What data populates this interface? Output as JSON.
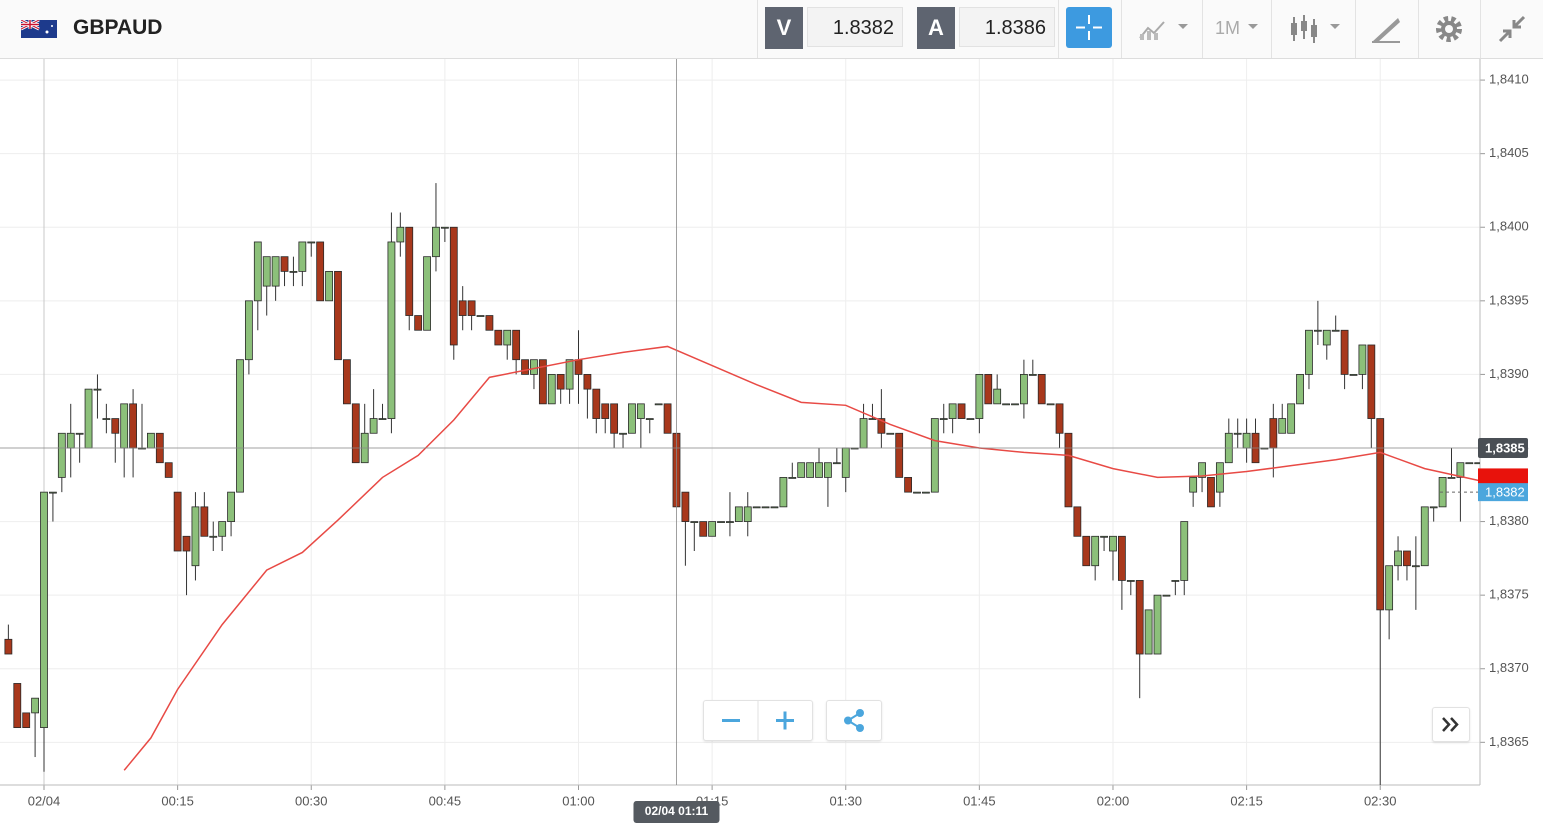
{
  "header": {
    "symbol": "GBPAUD",
    "bid_label": "V",
    "bid": "1.8382",
    "ask_label": "A",
    "ask": "1.8386",
    "timeframe": "1M"
  },
  "chart_data": {
    "type": "candlestick",
    "up_color": "#8cc07a",
    "down_color": "#a8381c",
    "x": [
      -4,
      -3,
      -2,
      -1,
      0,
      1,
      2,
      3,
      4,
      5,
      6,
      7,
      8,
      9,
      10,
      11,
      12,
      13,
      14,
      15,
      16,
      17,
      18,
      19,
      20,
      21,
      22,
      23,
      24,
      25,
      26,
      27,
      28,
      29,
      30,
      31,
      32,
      33,
      34,
      35,
      36,
      37,
      38,
      39,
      40,
      41,
      42,
      43,
      44,
      45,
      46,
      47,
      48,
      49,
      50,
      51,
      52,
      53,
      54,
      55,
      56,
      57,
      58,
      59,
      60,
      61,
      62,
      63,
      64,
      65,
      66,
      67,
      68,
      69,
      70,
      71,
      72,
      73,
      74,
      75,
      76,
      77,
      78,
      79,
      80,
      81,
      82,
      83,
      84,
      85,
      86,
      87,
      88,
      89,
      90,
      91,
      92,
      93,
      94,
      95,
      96,
      97,
      98,
      99,
      100,
      101,
      102,
      103,
      104,
      105,
      106,
      107,
      108,
      109,
      110,
      111,
      112,
      113,
      114,
      115,
      116,
      117,
      118,
      119,
      120,
      121,
      122,
      123,
      124,
      125,
      126,
      127,
      128,
      129,
      130,
      131,
      132,
      133,
      134,
      135,
      136,
      137,
      138,
      139,
      140,
      141,
      142,
      143,
      144,
      145,
      146,
      147,
      148,
      149,
      150,
      151,
      152,
      153,
      154,
      155,
      156,
      157,
      158,
      159,
      160,
      161
    ],
    "open": [
      1.8372,
      1.8369,
      1.8367,
      1.8367,
      1.8366,
      1.8382,
      1.8383,
      1.8385,
      1.8386,
      1.8385,
      1.8389,
      1.8387,
      1.8387,
      1.8385,
      1.8388,
      1.8385,
      1.8385,
      1.8386,
      1.8384,
      1.8382,
      1.8379,
      1.8377,
      1.8381,
      1.8379,
      1.8379,
      1.838,
      1.8382,
      1.8391,
      1.8395,
      1.8396,
      1.8396,
      1.8398,
      1.8397,
      1.8397,
      1.8399,
      1.8399,
      1.8395,
      1.8397,
      1.8391,
      1.8388,
      1.8384,
      1.8386,
      1.8387,
      1.8387,
      1.8399,
      1.84,
      1.8394,
      1.8393,
      1.8398,
      1.84,
      1.84,
      1.8395,
      1.8395,
      1.8394,
      1.8394,
      1.8393,
      1.8392,
      1.8393,
      1.8391,
      1.839,
      1.8391,
      1.8388,
      1.839,
      1.8389,
      1.8391,
      1.839,
      1.8389,
      1.8388,
      1.8388,
      1.8386,
      1.8386,
      1.8387,
      1.8387,
      1.8388,
      1.8388,
      1.8386,
      1.8382,
      1.838,
      1.838,
      1.8379,
      1.838,
      1.838,
      1.838,
      1.838,
      1.8381,
      1.8381,
      1.8381,
      1.8381,
      1.8383,
      1.8383,
      1.8383,
      1.8383,
      1.8383,
      1.8384,
      1.8383,
      1.8385,
      1.8385,
      1.8387,
      1.8387,
      1.8386,
      1.8386,
      1.8383,
      1.8382,
      1.8382,
      1.8382,
      1.8387,
      1.8387,
      1.8388,
      1.8387,
      1.8387,
      1.839,
      1.8388,
      1.8388,
      1.8388,
      1.8388,
      1.839,
      1.839,
      1.8388,
      1.8388,
      1.8386,
      1.8381,
      1.8379,
      1.8377,
      1.8379,
      1.8378,
      1.8379,
      1.8376,
      1.8376,
      1.8371,
      1.8371,
      1.8375,
      1.8376,
      1.8376,
      1.8382,
      1.8383,
      1.8383,
      1.8382,
      1.8384,
      1.8386,
      1.8385,
      1.8386,
      1.8385,
      1.8387,
      1.8386,
      1.8386,
      1.8388,
      1.839,
      1.8393,
      1.8392,
      1.8393,
      1.8393,
      1.839,
      1.839,
      1.8392,
      1.8387,
      1.8374,
      1.8377,
      1.8378,
      1.8377,
      1.8377,
      1.8381,
      1.8381,
      1.8383,
      1.8383,
      1.8384,
      1.8384
    ],
    "high": [
      1.8373,
      1.8369,
      1.8367,
      1.8368,
      1.8382,
      1.8382,
      1.8386,
      1.8388,
      1.8386,
      1.8389,
      1.839,
      1.8388,
      1.8387,
      1.8388,
      1.8389,
      1.8388,
      1.8386,
      1.8386,
      1.8384,
      1.8382,
      1.8379,
      1.8382,
      1.8382,
      1.838,
      1.838,
      1.8382,
      1.8391,
      1.8395,
      1.8399,
      1.8398,
      1.8398,
      1.8398,
      1.8398,
      1.8399,
      1.8399,
      1.8399,
      1.8397,
      1.8397,
      1.8391,
      1.8388,
      1.8388,
      1.8389,
      1.8388,
      1.8401,
      1.8401,
      1.84,
      1.8394,
      1.8398,
      1.8403,
      1.84,
      1.84,
      1.8396,
      1.8395,
      1.8394,
      1.8394,
      1.8393,
      1.8393,
      1.8393,
      1.8391,
      1.8391,
      1.8391,
      1.839,
      1.839,
      1.8391,
      1.8393,
      1.839,
      1.8389,
      1.8388,
      1.8388,
      1.8386,
      1.8388,
      1.8388,
      1.8387,
      1.8388,
      1.8388,
      1.8386,
      1.8382,
      1.838,
      1.838,
      1.838,
      1.838,
      1.8382,
      1.8381,
      1.8382,
      1.8381,
      1.8381,
      1.8381,
      1.8383,
      1.8384,
      1.8384,
      1.8384,
      1.8385,
      1.8384,
      1.8385,
      1.8385,
      1.8385,
      1.8388,
      1.8388,
      1.8389,
      1.8386,
      1.8386,
      1.8383,
      1.8382,
      1.8382,
      1.8387,
      1.8388,
      1.8388,
      1.8388,
      1.8387,
      1.839,
      1.839,
      1.839,
      1.8388,
      1.8388,
      1.8391,
      1.8391,
      1.839,
      1.8388,
      1.8388,
      1.8386,
      1.8381,
      1.8379,
      1.8379,
      1.8379,
      1.8379,
      1.8379,
      1.8376,
      1.8376,
      1.8374,
      1.8375,
      1.8375,
      1.8376,
      1.838,
      1.8383,
      1.8384,
      1.8383,
      1.8384,
      1.8387,
      1.8387,
      1.8387,
      1.8387,
      1.8385,
      1.8388,
      1.8388,
      1.8388,
      1.839,
      1.8393,
      1.8395,
      1.8393,
      1.8394,
      1.8393,
      1.839,
      1.8392,
      1.8392,
      1.8387,
      1.8377,
      1.8379,
      1.8378,
      1.8379,
      1.8381,
      1.8381,
      1.8383,
      1.8385,
      1.8384,
      1.8384,
      1.8384
    ],
    "low": [
      1.8371,
      1.8366,
      1.8366,
      1.8364,
      1.8363,
      1.838,
      1.8382,
      1.8383,
      1.8384,
      1.8385,
      1.8387,
      1.8386,
      1.8384,
      1.8383,
      1.8383,
      1.8385,
      1.8385,
      1.8384,
      1.8383,
      1.8378,
      1.8375,
      1.8376,
      1.8379,
      1.8378,
      1.8378,
      1.8379,
      1.8382,
      1.839,
      1.8393,
      1.8394,
      1.8395,
      1.8396,
      1.8396,
      1.8396,
      1.8398,
      1.8395,
      1.8395,
      1.8391,
      1.8388,
      1.8384,
      1.8384,
      1.8386,
      1.8387,
      1.8386,
      1.8398,
      1.8393,
      1.8393,
      1.8393,
      1.8397,
      1.8399,
      1.8391,
      1.8393,
      1.8393,
      1.8394,
      1.8393,
      1.8392,
      1.8391,
      1.839,
      1.839,
      1.8389,
      1.8388,
      1.8388,
      1.8388,
      1.8388,
      1.8388,
      1.8387,
      1.8386,
      1.8386,
      1.8385,
      1.8385,
      1.8386,
      1.8385,
      1.8386,
      1.8388,
      1.8386,
      1.8381,
      1.8377,
      1.8378,
      1.8379,
      1.8379,
      1.838,
      1.8379,
      1.838,
      1.8379,
      1.8381,
      1.8381,
      1.8381,
      1.8381,
      1.8383,
      1.8383,
      1.8383,
      1.8383,
      1.8381,
      1.8384,
      1.8382,
      1.8385,
      1.8385,
      1.8387,
      1.8385,
      1.8386,
      1.8383,
      1.8382,
      1.8382,
      1.8382,
      1.8382,
      1.8386,
      1.8386,
      1.8387,
      1.8387,
      1.8386,
      1.8388,
      1.8388,
      1.8388,
      1.8388,
      1.8387,
      1.839,
      1.8388,
      1.8388,
      1.8385,
      1.8381,
      1.8379,
      1.8377,
      1.8376,
      1.8378,
      1.8376,
      1.8374,
      1.8375,
      1.8368,
      1.8371,
      1.8371,
      1.8375,
      1.8375,
      1.8375,
      1.8381,
      1.8382,
      1.8381,
      1.8381,
      1.8384,
      1.8385,
      1.8384,
      1.8384,
      1.8385,
      1.8383,
      1.8386,
      1.8386,
      1.8388,
      1.8389,
      1.8392,
      1.8391,
      1.8393,
      1.8389,
      1.839,
      1.8389,
      1.8385,
      1.8362,
      1.8372,
      1.8376,
      1.8376,
      1.8374,
      1.8377,
      1.838,
      1.8381,
      1.8383,
      1.838,
      1.8384,
      1.8384
    ],
    "close": [
      1.8371,
      1.8366,
      1.8366,
      1.8368,
      1.8382,
      1.8382,
      1.8386,
      1.8386,
      1.8386,
      1.8389,
      1.8389,
      1.8387,
      1.8386,
      1.8388,
      1.8385,
      1.8385,
      1.8386,
      1.8384,
      1.8383,
      1.8378,
      1.8378,
      1.8381,
      1.8379,
      1.8379,
      1.838,
      1.8382,
      1.8391,
      1.8395,
      1.8399,
      1.8398,
      1.8398,
      1.8397,
      1.8397,
      1.8399,
      1.8399,
      1.8395,
      1.8397,
      1.8391,
      1.8388,
      1.8384,
      1.8386,
      1.8387,
      1.8387,
      1.8399,
      1.84,
      1.8394,
      1.8393,
      1.8398,
      1.84,
      1.84,
      1.8392,
      1.8394,
      1.8394,
      1.8394,
      1.8393,
      1.8392,
      1.8393,
      1.8391,
      1.839,
      1.8391,
      1.8388,
      1.839,
      1.8389,
      1.8391,
      1.839,
      1.8389,
      1.8387,
      1.8387,
      1.8386,
      1.8386,
      1.8388,
      1.8388,
      1.8387,
      1.8388,
      1.8386,
      1.8381,
      1.838,
      1.838,
      1.8379,
      1.838,
      1.838,
      1.838,
      1.8381,
      1.8381,
      1.8381,
      1.8381,
      1.8381,
      1.8383,
      1.8383,
      1.8384,
      1.8384,
      1.8384,
      1.8384,
      1.8384,
      1.8385,
      1.8385,
      1.8387,
      1.8387,
      1.8386,
      1.8386,
      1.8383,
      1.8382,
      1.8382,
      1.8382,
      1.8387,
      1.8387,
      1.8388,
      1.8387,
      1.8387,
      1.839,
      1.8388,
      1.8389,
      1.8388,
      1.8388,
      1.839,
      1.839,
      1.8388,
      1.8388,
      1.8386,
      1.8381,
      1.8379,
      1.8377,
      1.8379,
      1.8379,
      1.8379,
      1.8376,
      1.8376,
      1.8371,
      1.8374,
      1.8375,
      1.8375,
      1.8376,
      1.838,
      1.8383,
      1.8384,
      1.8381,
      1.8384,
      1.8386,
      1.8386,
      1.8386,
      1.8384,
      1.8385,
      1.8385,
      1.8387,
      1.8388,
      1.839,
      1.8393,
      1.8393,
      1.8393,
      1.8393,
      1.839,
      1.839,
      1.8392,
      1.8387,
      1.8374,
      1.8377,
      1.8378,
      1.8377,
      1.8377,
      1.8381,
      1.8381,
      1.8383,
      1.8383,
      1.8384,
      1.8384,
      1.8384
    ],
    "ma": {
      "color": "#e84a45",
      "x": [
        9,
        12,
        15,
        20,
        25,
        29,
        33,
        38,
        42,
        46,
        50,
        55,
        60,
        65,
        70,
        75,
        80,
        85,
        90,
        95,
        100,
        105,
        110,
        115,
        120,
        125,
        130,
        135,
        140,
        145,
        150,
        155,
        161
      ],
      "values": [
        1.83631,
        1.83653,
        1.83686,
        1.8373,
        1.83767,
        1.83779,
        1.83801,
        1.8383,
        1.83845,
        1.83869,
        1.83898,
        1.83904,
        1.8391,
        1.83915,
        1.83919,
        1.83906,
        1.83893,
        1.83881,
        1.83879,
        1.83866,
        1.83855,
        1.8385,
        1.83847,
        1.83845,
        1.83836,
        1.8383,
        1.83831,
        1.83834,
        1.83838,
        1.83842,
        1.83847,
        1.83836,
        1.83828
      ]
    },
    "xlim": [
      -4.94,
      161.2
    ],
    "ylim": [
      1.83621,
      1.84115
    ],
    "xticks": [
      {
        "value": 0,
        "label": "02/04"
      },
      {
        "value": 15,
        "label": "00:15"
      },
      {
        "value": 30,
        "label": "00:30"
      },
      {
        "value": 45,
        "label": "00:45"
      },
      {
        "value": 60,
        "label": "01:00"
      },
      {
        "value": 75,
        "label": "01:15"
      },
      {
        "value": 90,
        "label": "01:30"
      },
      {
        "value": 105,
        "label": "01:45"
      },
      {
        "value": 120,
        "label": "02:00"
      },
      {
        "value": 135,
        "label": "02:15"
      },
      {
        "value": 150,
        "label": "02:30"
      }
    ],
    "yticks": [
      {
        "value": 1.841,
        "label": "1,8410"
      },
      {
        "value": 1.8405,
        "label": "1,8405"
      },
      {
        "value": 1.84,
        "label": "1,8400"
      },
      {
        "value": 1.8395,
        "label": "1,8395"
      },
      {
        "value": 1.839,
        "label": "1,8390"
      },
      {
        "value": 1.8385,
        "label": "1,8385"
      },
      {
        "value": 1.838,
        "label": "1,8380"
      },
      {
        "value": 1.8375,
        "label": "1,8375"
      },
      {
        "value": 1.837,
        "label": "1,8370"
      },
      {
        "value": 1.8365,
        "label": "1,8365"
      }
    ],
    "grid": true,
    "crosshair": {
      "x": {
        "value": 71,
        "label": "02/04 01:11"
      },
      "y": {
        "value": 1.8385,
        "label": "1,8385"
      }
    },
    "ask_marker": {
      "value": 1.8383,
      "color": "#e8120c"
    },
    "last_price": {
      "value": 1.8382,
      "label": "1,8382",
      "color": "#4ba6dd"
    }
  }
}
